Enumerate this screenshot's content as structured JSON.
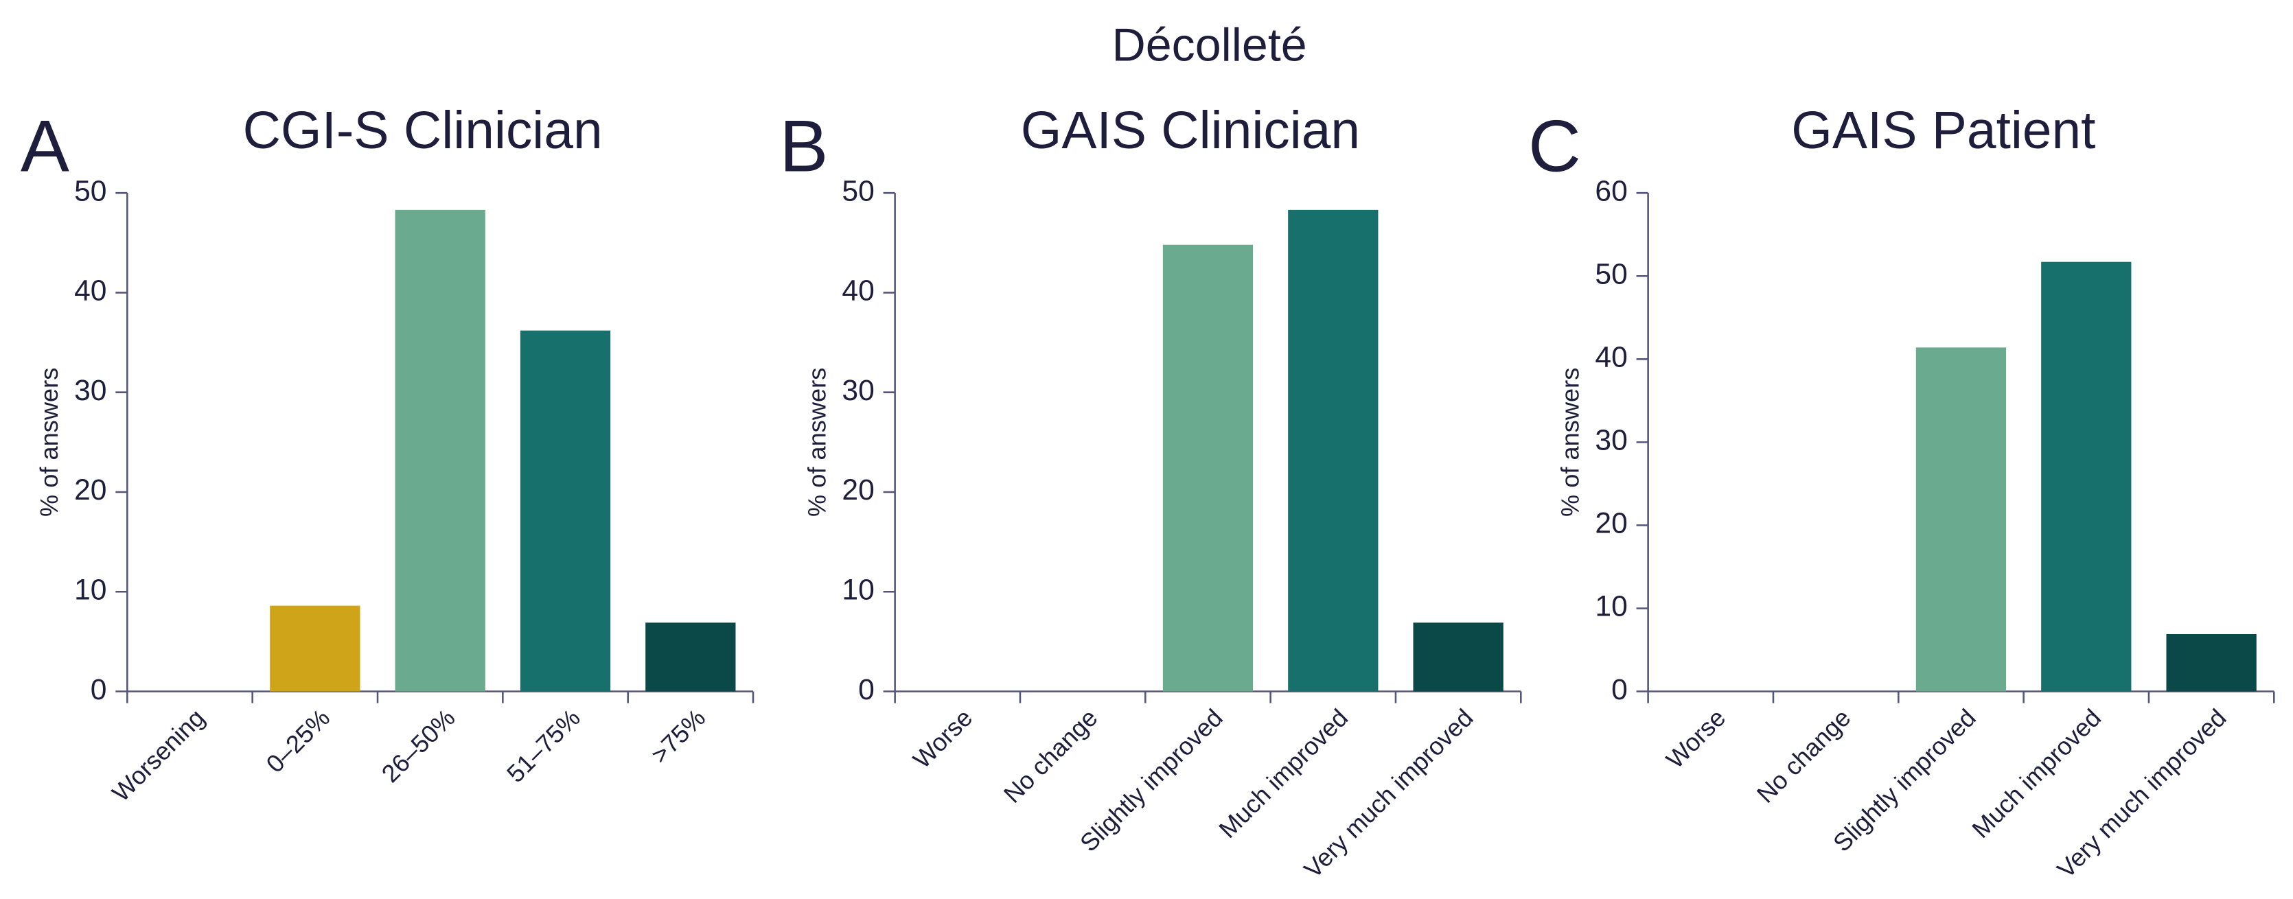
{
  "title": "Décolleté",
  "chart_data": [
    {
      "type": "bar",
      "label": "A",
      "title": "CGI-S Clinician",
      "ylabel": "% of answers",
      "categories": [
        "Worsening",
        "0–25%",
        "26–50%",
        "51–75%",
        ">75%"
      ],
      "values": [
        0,
        8.6,
        48.3,
        36.2,
        6.9
      ],
      "colors": [
        "#d0a418",
        "#d0a418",
        "#6aab8f",
        "#18706c",
        "#0b4948"
      ],
      "ylim": [
        0,
        50
      ],
      "yticks": [
        0,
        10,
        20,
        30,
        40,
        50
      ]
    },
    {
      "type": "bar",
      "label": "B",
      "title": "GAIS Clinician",
      "ylabel": "% of answers",
      "categories": [
        "Worse",
        "No change",
        "Slightly improved",
        "Much improved",
        "Very much improved"
      ],
      "values": [
        0,
        0,
        44.8,
        48.3,
        6.9
      ],
      "colors": [
        "#6aab8f",
        "#6aab8f",
        "#6aab8f",
        "#18706c",
        "#0b4948"
      ],
      "ylim": [
        0,
        50
      ],
      "yticks": [
        0,
        10,
        20,
        30,
        40,
        50
      ]
    },
    {
      "type": "bar",
      "label": "C",
      "title": "GAIS Patient",
      "ylabel": "% of answers",
      "categories": [
        "Worse",
        "No change",
        "Slightly improved",
        "Much improved",
        "Very much improved"
      ],
      "values": [
        0,
        0,
        41.4,
        51.7,
        6.9
      ],
      "colors": [
        "#6aab8f",
        "#6aab8f",
        "#6aab8f",
        "#18706c",
        "#0b4948"
      ],
      "ylim": [
        0,
        60
      ],
      "yticks": [
        0,
        10,
        20,
        30,
        40,
        50,
        60
      ]
    }
  ]
}
